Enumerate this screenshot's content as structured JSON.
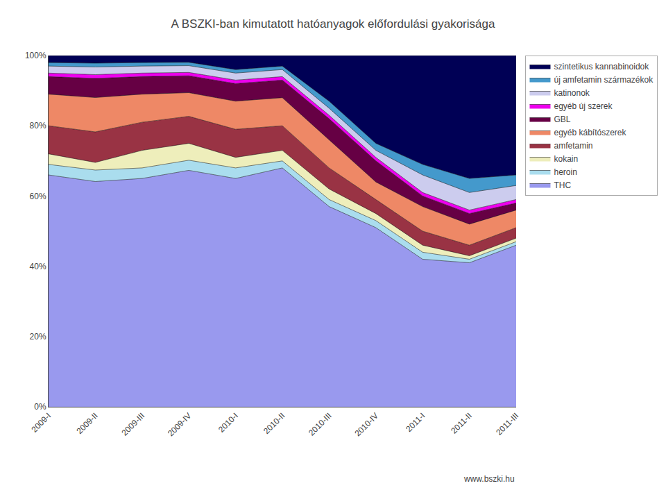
{
  "chart_data": {
    "type": "area",
    "stacked": true,
    "title": "A BSZKI-ban kimutatott hatóanyagok előfordulási gyakorisága",
    "categories": [
      "2009-I",
      "2009-II",
      "2009-III",
      "2009-IV",
      "2010-I",
      "2010-II",
      "2010-III",
      "2010-IV",
      "2011-I",
      "2011-II",
      "2011-III"
    ],
    "series": [
      {
        "name": "THC",
        "color": "#9999ee",
        "values": [
          66,
          64.1304347826087,
          65,
          67.3076923076923,
          65,
          68,
          57,
          51,
          42,
          41,
          46
        ]
      },
      {
        "name": "heroin",
        "color": "#aaddee",
        "values": [
          3,
          3.260869565217391,
          3,
          2.8846153846153846,
          3,
          2,
          2,
          2,
          2,
          1,
          1
        ]
      },
      {
        "name": "kokain",
        "color": "#eeeebb",
        "values": [
          3,
          2.1739130434782608,
          5,
          4.807692307692308,
          3,
          3,
          3,
          2,
          2,
          1,
          1
        ]
      },
      {
        "name": "amfetamin",
        "color": "#993344",
        "values": [
          8,
          8.695652173913043,
          8,
          7.6923076923076925,
          8,
          7,
          6,
          4,
          4,
          3,
          3
        ]
      },
      {
        "name": "egyéb kábítószerek",
        "color": "#ee8866",
        "values": [
          9,
          9.782608695652174,
          8,
          6.730769230769231,
          8,
          8,
          8,
          5,
          7,
          6,
          5
        ]
      },
      {
        "name": "GBL",
        "color": "#660044",
        "values": [
          5,
          5.434782608695652,
          5,
          4.807692307692308,
          5,
          5,
          6,
          6,
          3,
          3,
          2
        ]
      },
      {
        "name": "egyéb új szerek",
        "color": "#ee00ee",
        "values": [
          1,
          1.0869565217391304,
          1,
          0.9615384615384616,
          1,
          1,
          1,
          1,
          1,
          1,
          1
        ]
      },
      {
        "name": "katinonok",
        "color": "#ccccee",
        "values": [
          2,
          2.1739130434782608,
          2,
          1.9230769230769231,
          2,
          2,
          2,
          2,
          5,
          5,
          4
        ]
      },
      {
        "name": "új amfetamin származékok",
        "color": "#4499cc",
        "values": [
          1,
          1.0869565217391304,
          1,
          0.9615384615384616,
          1,
          1,
          2,
          2,
          3,
          4,
          3
        ]
      },
      {
        "name": "szintetikus kannabinoidok",
        "color": "#000055",
        "values": [
          2,
          2.1739130434782608,
          2,
          1.9230769230769231,
          4,
          3,
          13,
          25,
          31,
          35,
          34
        ]
      }
    ],
    "ylim": [
      0,
      100
    ],
    "yticks": [
      {
        "value": 0,
        "label": "0%"
      },
      {
        "value": 20,
        "label": "20%"
      },
      {
        "value": 40,
        "label": "40%"
      },
      {
        "value": 60,
        "label": "60%"
      },
      {
        "value": 80,
        "label": "80%"
      },
      {
        "value": 100,
        "label": "100%"
      }
    ],
    "grid": true,
    "legend": "right",
    "annotations": [
      {
        "text": "www.bszki.hu"
      }
    ]
  }
}
